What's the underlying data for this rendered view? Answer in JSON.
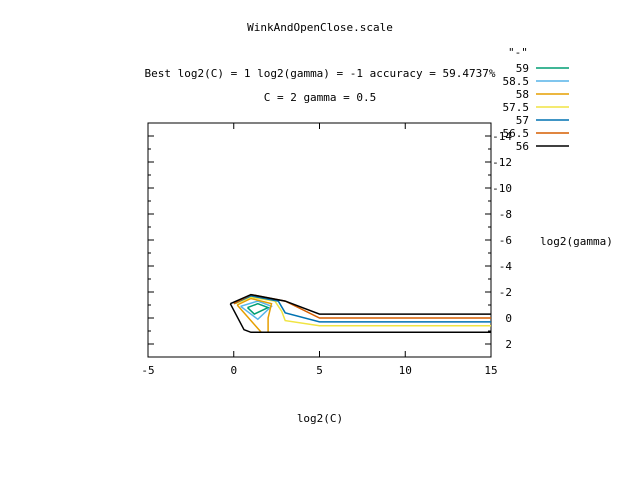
{
  "chart_data": {
    "type": "contour",
    "title": "WinkAndOpenClose.scale",
    "subtitle_line1": "Best log2(C) = 1  log2(gamma) = -1  accuracy = 59.4737%",
    "subtitle_line2": "C = 2  gamma = 0.5",
    "xlabel": "log2(C)",
    "ylabel": "log2(gamma)",
    "xlim": [
      -5,
      15
    ],
    "ylim": [
      3,
      -15
    ],
    "x_ticks": [
      -5,
      0,
      5,
      10,
      15
    ],
    "x_tick_labels": [
      "-5",
      "0",
      "5",
      "10",
      "15"
    ],
    "y_ticks": [
      2,
      0,
      -2,
      -4,
      -6,
      -8,
      -10,
      -12,
      -14
    ],
    "y_tick_labels": [
      "2",
      "0",
      "-2",
      "-4",
      "-6",
      "-8",
      "-10",
      "-12",
      "-14"
    ],
    "y_minor_ticks": [
      3,
      1,
      -1,
      -3,
      -5,
      -7,
      -9,
      -11,
      -13,
      -15
    ],
    "legend_title": "\"-\"",
    "legend_placement": "top-right",
    "series": [
      {
        "name": "59",
        "color": "#009e73",
        "points": [
          [
            0.8,
            -0.8
          ],
          [
            1.4,
            -1.1
          ],
          [
            2.0,
            -0.8
          ],
          [
            1.2,
            -0.3
          ],
          [
            0.8,
            -0.8
          ]
        ]
      },
      {
        "name": "58.5",
        "color": "#56b4e9",
        "points": [
          [
            0.4,
            -0.9
          ],
          [
            1.4,
            -1.3
          ],
          [
            2.2,
            -0.9
          ],
          [
            1.4,
            0.1
          ],
          [
            0.4,
            -0.9
          ]
        ]
      },
      {
        "name": "58",
        "color": "#e69f00",
        "points": [
          [
            0.2,
            -1.0
          ],
          [
            1.0,
            -1.5
          ],
          [
            2.2,
            -1.1
          ],
          [
            2.0,
            0.0
          ],
          [
            2.0,
            1.1
          ],
          [
            1.6,
            1.1
          ],
          [
            0.2,
            -1.0
          ]
        ]
      },
      {
        "name": "57.5",
        "color": "#f0e442",
        "points": [
          [
            0.1,
            -1.1
          ],
          [
            1.0,
            -1.6
          ],
          [
            2.4,
            -1.3
          ],
          [
            2.8,
            -0.5
          ],
          [
            3.0,
            0.2
          ],
          [
            5.0,
            0.6
          ],
          [
            15.0,
            0.6
          ]
        ]
      },
      {
        "name": "57",
        "color": "#0072b2",
        "points": [
          [
            0.0,
            -1.1
          ],
          [
            1.0,
            -1.7
          ],
          [
            2.6,
            -1.3
          ],
          [
            3.0,
            -0.4
          ],
          [
            5.0,
            0.3
          ],
          [
            15.0,
            0.3
          ]
        ]
      },
      {
        "name": "56.5",
        "color": "#d55e00",
        "points": [
          [
            0.0,
            -1.1
          ],
          [
            1.0,
            -1.8
          ],
          [
            3.0,
            -1.3
          ],
          [
            5.0,
            0.0
          ],
          [
            15.0,
            0.0
          ]
        ]
      },
      {
        "name": "56",
        "color": "#000000",
        "points": [
          [
            -0.2,
            -1.1
          ],
          [
            1.0,
            -1.8
          ],
          [
            3.0,
            -1.3
          ],
          [
            5.0,
            -0.3
          ],
          [
            15.0,
            -0.3
          ]
        ]
      },
      {
        "name": "56",
        "color": "#000000",
        "points": [
          [
            -0.2,
            -1.1
          ],
          [
            0.6,
            0.9
          ],
          [
            1.0,
            1.1
          ],
          [
            15.0,
            1.1
          ]
        ]
      }
    ]
  }
}
